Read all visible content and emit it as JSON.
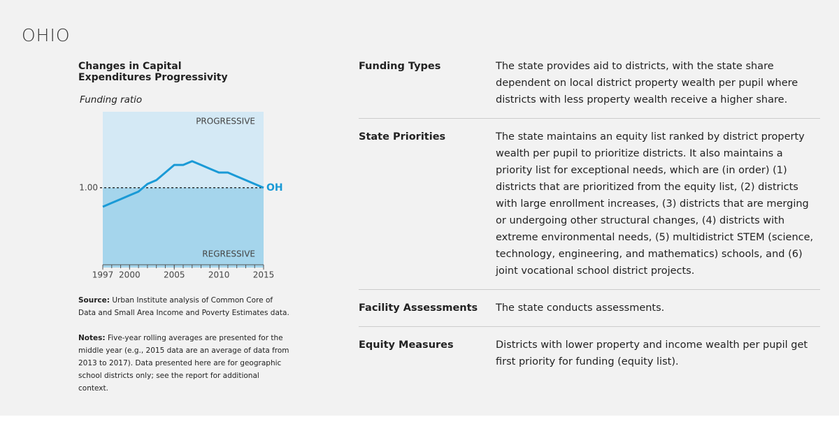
{
  "page": {
    "title": "OHIO",
    "source": {
      "label": "Source:",
      "text": "Urban Institute analysis of Common Core of Data and Small Area Income and Poverty Estimates data."
    },
    "notes": {
      "label": "Notes:",
      "text": "Five-year rolling averages are presented for the middle year (e.g., 2015 data are an average of data from 2013 to 2017). Data presented here are for geographic school districts only; see the report for additional context."
    },
    "table": {
      "rows": [
        [
          "Funding Types",
          "The state provides aid to districts, with the state share dependent on local district property wealth per pupil where districts with less property wealth receive a higher share."
        ],
        [
          "State Priorities",
          "The state maintains an equity list ranked by district property wealth per pupil to prioritize districts. It also maintains a priority list for exceptional needs, which are (in order) (1) districts that are prioritized from the equity list, (2) districts with large enrollment increases, (3) districts that are merging or undergoing other structural changes, (4) districts with extreme environmental needs, (5) multidistrict STEM (science, technology, engineering, and mathematics) schools, and (6) joint vocational school district projects."
        ],
        [
          "Facility Assessments",
          "The state conducts assessments."
        ],
        [
          "Equity Measures",
          "Districts with lower property and income wealth per pupil get first priority for funding (equity list)."
        ]
      ]
    }
  },
  "chart_data": {
    "type": "line",
    "title": "Changes in Capital Expenditures Progressivity",
    "y_label": "Funding ratio",
    "x": [
      1997,
      1998,
      1999,
      2000,
      2001,
      2002,
      2003,
      2004,
      2005,
      2006,
      2007,
      2008,
      2009,
      2010,
      2011,
      2012,
      2013,
      2014,
      2015
    ],
    "series": [
      {
        "name": "OH",
        "color": "#1a9ad6",
        "values": [
          0.95,
          0.96,
          0.97,
          0.98,
          0.99,
          1.01,
          1.02,
          1.04,
          1.06,
          1.06,
          1.07,
          1.06,
          1.05,
          1.04,
          1.04,
          1.03,
          1.02,
          1.01,
          1.0
        ]
      }
    ],
    "xlim": [
      1997,
      2015
    ],
    "xticks": [
      1997,
      2000,
      2005,
      2010,
      2015
    ],
    "ylim": [
      0.79,
      1.2
    ],
    "yticks": [
      {
        "value": 1,
        "label": "1.00"
      }
    ],
    "annotations": [
      "PROGRESSIVE",
      "REGRESSIVE"
    ],
    "colors": {
      "above": "#d4e9f5",
      "below": "#a5d5ec"
    }
  }
}
